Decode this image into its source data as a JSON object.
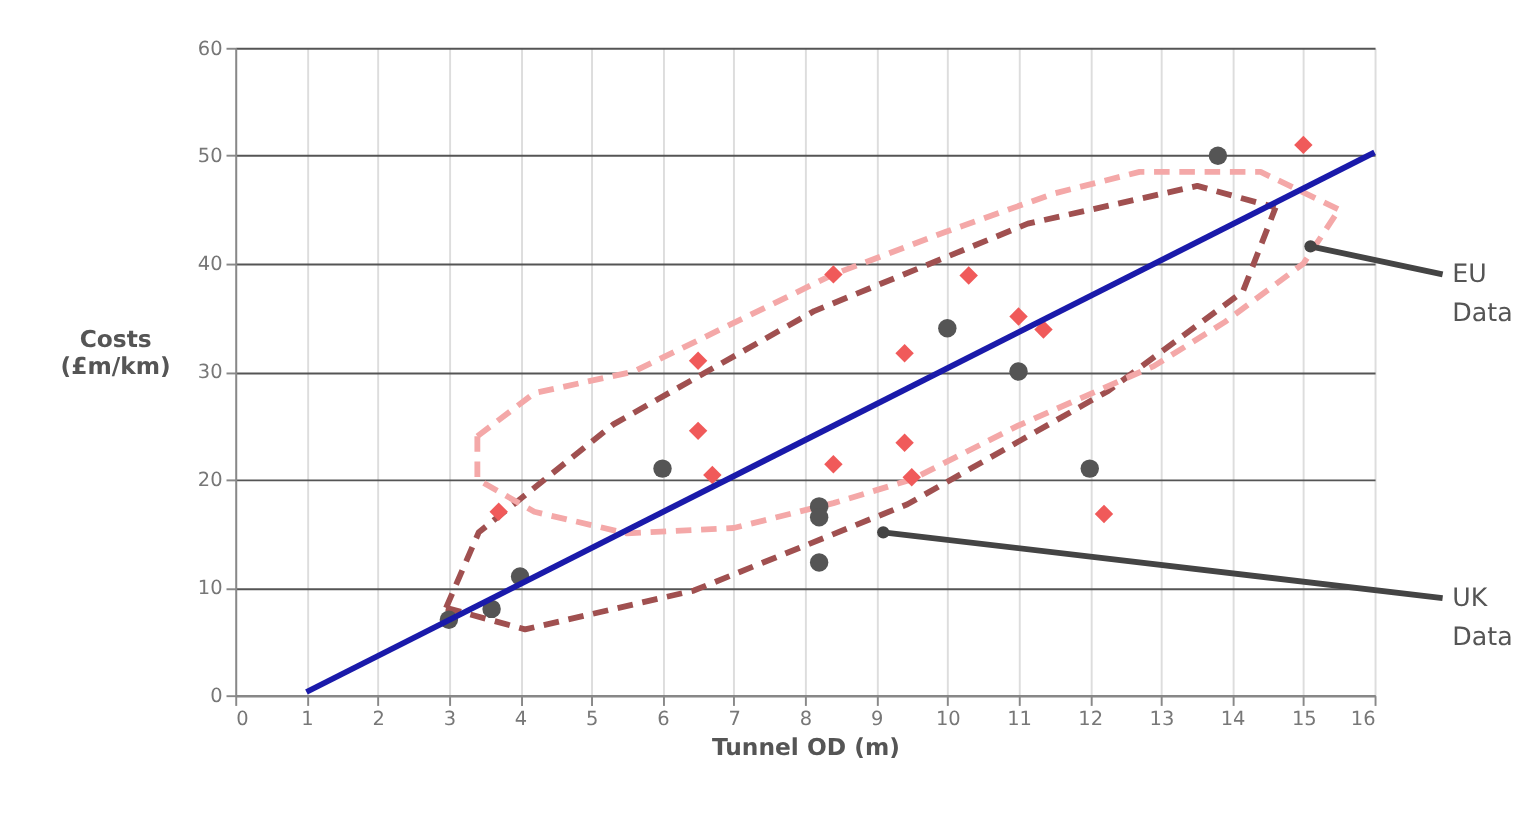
{
  "chart_data": {
    "type": "scatter",
    "xlabel": "Tunnel OD (m)",
    "ylabel": "Costs\n(£m/km)",
    "xlim": [
      0,
      16
    ],
    "ylim": [
      0,
      60
    ],
    "xticks": [
      0,
      1,
      2,
      3,
      4,
      5,
      6,
      7,
      8,
      9,
      10,
      11,
      12,
      13,
      14,
      15,
      16
    ],
    "yticks": [
      0,
      10,
      20,
      30,
      40,
      50,
      60
    ],
    "grid": true,
    "series": [
      {
        "type": "line",
        "color": "#a05050",
        "line_style": "dashed",
        "marker": "none",
        "x": [
          2.96,
          3.42,
          5.31,
          8.13,
          11.13,
          13.51,
          14.61
        ],
        "values": [
          8.1,
          15.1,
          25.1,
          35.6,
          43.7,
          47.2,
          45.2
        ]
      },
      {
        "type": "line",
        "color": "#a05050",
        "line_style": "dashed",
        "marker": "none",
        "x": [
          2.96,
          4.07,
          6.44,
          9.44,
          12.26,
          14.15,
          14.61
        ],
        "values": [
          8.1,
          6.1,
          9.7,
          17.7,
          28.2,
          37.4,
          45.2
        ]
      },
      {
        "type": "line",
        "color": "#f4a8a8",
        "line_style": "dashed",
        "marker": "none",
        "x": [
          3.4,
          4.2,
          5.6,
          7,
          8.4,
          10,
          11.5,
          12.7,
          14.4,
          15.5
        ],
        "values": [
          24,
          28,
          30,
          34.5,
          39,
          43,
          46.5,
          48.5,
          48.5,
          45
        ]
      },
      {
        "type": "line",
        "color": "#f4a8a8",
        "line_style": "dashed",
        "marker": "none",
        "x": [
          3.4,
          3.4,
          4.2,
          5.5,
          7,
          8.4,
          9.5,
          11,
          12.9,
          13.9,
          15,
          15.5
        ],
        "values": [
          24,
          20,
          17,
          15,
          15.5,
          17.8,
          20,
          25,
          30.5,
          34.6,
          40,
          45
        ]
      },
      {
        "color": "#555555",
        "marker": "circle",
        "x": [
          3,
          3.6,
          4,
          6,
          8.2,
          8.2,
          8.2,
          10,
          11,
          12,
          13.8
        ],
        "values": [
          7,
          8,
          11,
          21,
          17.5,
          16.5,
          12.3,
          34,
          30,
          21,
          50
        ]
      },
      {
        "color": "#f05a5a",
        "marker": "diamond",
        "x": [
          3.7,
          6.5,
          6.5,
          6.7,
          8.4,
          8.4,
          9.4,
          9.4,
          9.5,
          10.3,
          11,
          11.35,
          12.2,
          15
        ],
        "values": [
          17,
          31,
          24.5,
          20.4,
          39,
          21.4,
          31.7,
          23.4,
          20.2,
          38.9,
          35.1,
          33.9,
          16.8,
          51
        ]
      },
      {
        "type": "line",
        "color": "#1a1aaa",
        "line_style": "solid",
        "marker": "none",
        "x": [
          1,
          16
        ],
        "values": [
          0.3,
          50.3
        ]
      }
    ],
    "annotations": [
      {
        "text": "EU Data",
        "x": 15.1,
        "y": 41.6
      },
      {
        "text": "UK Data",
        "x": 9.1,
        "y": 15.1
      }
    ]
  }
}
